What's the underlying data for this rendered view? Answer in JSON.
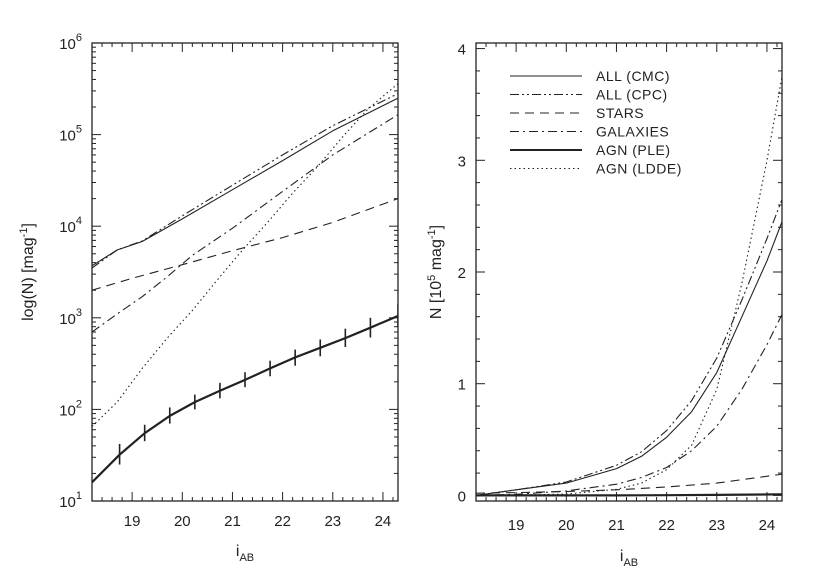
{
  "chart_data": [
    {
      "type": "line",
      "xlabel": "iAB",
      "xlabel_main": "i",
      "xlabel_sub": "AB",
      "ylabel": "log(N) [mag⁻¹]",
      "ylabel_main": "log(N) [mag",
      "ylabel_sup": "-1",
      "ylabel_close": "]",
      "yscale": "log",
      "xlim": [
        18.2,
        24.3
      ],
      "ylim": [
        10,
        1000000
      ],
      "x_ticks": [
        "19",
        "20",
        "21",
        "22",
        "23",
        "24"
      ],
      "y_ticks": [
        {
          "base": "10",
          "exp": "1",
          "value": 10
        },
        {
          "base": "10",
          "exp": "2",
          "value": 100
        },
        {
          "base": "10",
          "exp": "3",
          "value": 1000
        },
        {
          "base": "10",
          "exp": "4",
          "value": 10000
        },
        {
          "base": "10",
          "exp": "5",
          "value": 100000
        },
        {
          "base": "10",
          "exp": "6",
          "value": 1000000
        }
      ],
      "series": [
        {
          "name": "ALL (CMC)",
          "style": "solid",
          "x": [
            18.2,
            18.7,
            19.2,
            20,
            21,
            22,
            23,
            24.3
          ],
          "y": [
            3700,
            5500,
            6800,
            12000,
            25000,
            52000,
            110000,
            250000
          ]
        },
        {
          "name": "ALL (CPC)",
          "style": "dash-dot-dot",
          "x": [
            18.2,
            18.7,
            19.2,
            20,
            21,
            22,
            23,
            24.3
          ],
          "y": [
            3500,
            5500,
            6900,
            13000,
            28000,
            60000,
            125000,
            280000
          ]
        },
        {
          "name": "STARS",
          "style": "dash",
          "x": [
            18.2,
            19,
            20,
            21,
            22,
            23,
            24.3
          ],
          "y": [
            2000,
            2700,
            3800,
            5400,
            7500,
            11000,
            20000
          ]
        },
        {
          "name": "GALAXIES",
          "style": "dash-dot",
          "x": [
            18.2,
            18.7,
            19.2,
            19.7,
            20.2,
            21,
            22,
            23,
            24.3
          ],
          "y": [
            700,
            1100,
            1700,
            2800,
            4800,
            9500,
            24000,
            60000,
            165000
          ]
        },
        {
          "name": "AGN (PLE)",
          "style": "solid-thick",
          "x": [
            18.2,
            18.75,
            19.25,
            19.75,
            20.25,
            20.75,
            21.25,
            21.75,
            22.25,
            22.75,
            23.25,
            23.75,
            24.3
          ],
          "y": [
            16,
            32,
            55,
            85,
            120,
            160,
            210,
            280,
            370,
            470,
            600,
            780,
            1050
          ],
          "err_low": [
            0,
            25,
            45,
            70,
            100,
            132,
            175,
            230,
            300,
            380,
            480,
            610,
            780
          ],
          "err_high": [
            0,
            42,
            68,
            105,
            145,
            195,
            255,
            340,
            450,
            580,
            760,
            1000,
            1400
          ]
        },
        {
          "name": "AGN (LDDE)",
          "style": "dotted",
          "x": [
            18.2,
            18.7,
            19.2,
            19.7,
            20.2,
            20.7,
            21.2,
            21.7,
            22.2,
            22.7,
            23.2,
            23.7,
            24.3
          ],
          "y": [
            65,
            120,
            280,
            600,
            1200,
            2600,
            5500,
            11000,
            23000,
            45000,
            95000,
            190000,
            360000
          ]
        }
      ]
    },
    {
      "type": "line",
      "xlabel": "iAB",
      "xlabel_main": "i",
      "xlabel_sub": "AB",
      "ylabel": "N [10⁵ mag⁻¹]",
      "ylabel_main": "N [10",
      "ylabel_sup1": "5",
      "ylabel_mid": " mag",
      "ylabel_sup2": "-1",
      "ylabel_close": "]",
      "xlim": [
        18.2,
        24.3
      ],
      "ylim": [
        -0.05,
        4.05
      ],
      "x_ticks": [
        "19",
        "20",
        "21",
        "22",
        "23",
        "24"
      ],
      "y_ticks": [
        "0",
        "1",
        "2",
        "3",
        "4"
      ],
      "legend": {
        "placement": "top-left",
        "entries": [
          "ALL (CMC)",
          "ALL (CPC)",
          "STARS",
          "GALAXIES",
          "AGN (PLE)",
          "AGN (LDDE)"
        ]
      },
      "series": [
        {
          "name": "ALL (CMC)",
          "style": "solid",
          "x": [
            18.2,
            19,
            20,
            21,
            21.5,
            22,
            22.5,
            23,
            23.5,
            24,
            24.3
          ],
          "y": [
            0.0,
            0.05,
            0.11,
            0.24,
            0.35,
            0.52,
            0.75,
            1.1,
            1.6,
            2.1,
            2.45
          ]
        },
        {
          "name": "ALL (CPC)",
          "style": "dash-dot-dot",
          "x": [
            18.2,
            19,
            20,
            21,
            21.5,
            22,
            22.5,
            23,
            23.5,
            24,
            24.3
          ],
          "y": [
            0.0,
            0.05,
            0.12,
            0.27,
            0.39,
            0.58,
            0.85,
            1.23,
            1.75,
            2.3,
            2.65
          ]
        },
        {
          "name": "STARS",
          "style": "dash",
          "x": [
            18.2,
            19,
            20,
            21,
            22,
            23,
            24.3
          ],
          "y": [
            0.02,
            0.025,
            0.035,
            0.05,
            0.075,
            0.11,
            0.19
          ]
        },
        {
          "name": "GALAXIES",
          "style": "dash-dot",
          "x": [
            18.2,
            19,
            20,
            21,
            21.5,
            22,
            22.5,
            23,
            23.5,
            24,
            24.3
          ],
          "y": [
            0.0,
            0.01,
            0.04,
            0.1,
            0.16,
            0.25,
            0.4,
            0.62,
            0.95,
            1.35,
            1.62
          ]
        },
        {
          "name": "AGN (PLE)",
          "style": "solid-thick",
          "x": [
            18.2,
            19,
            20,
            21,
            22,
            23,
            24.3
          ],
          "y": [
            0.0,
            0.0,
            0.0,
            0.0,
            0.002,
            0.005,
            0.01
          ]
        },
        {
          "name": "AGN (LDDE)",
          "style": "dotted",
          "x": [
            18.2,
            19,
            20,
            21,
            21.5,
            22,
            22.5,
            23,
            23.5,
            24,
            24.3
          ],
          "y": [
            0.0,
            0.003,
            0.012,
            0.055,
            0.11,
            0.23,
            0.45,
            0.95,
            1.9,
            3.0,
            3.75
          ]
        }
      ]
    }
  ]
}
